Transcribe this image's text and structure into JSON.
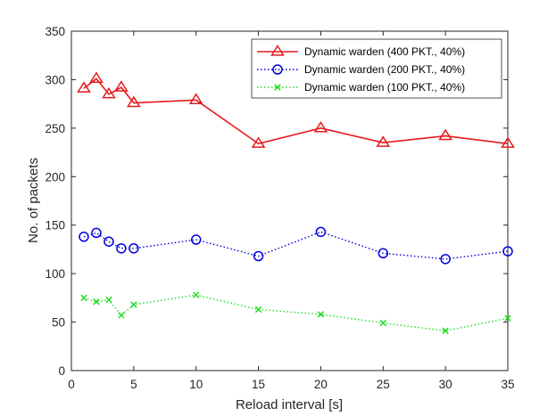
{
  "chart_data": {
    "type": "line",
    "title": "",
    "xlabel": "Reload interval [s]",
    "ylabel": "No. of packets",
    "xlim": [
      0,
      35
    ],
    "ylim": [
      0,
      350
    ],
    "xticks": [
      0,
      5,
      10,
      15,
      20,
      25,
      30,
      35
    ],
    "yticks": [
      0,
      50,
      100,
      150,
      200,
      250,
      300,
      350
    ],
    "x": [
      1,
      2,
      3,
      4,
      5,
      10,
      15,
      20,
      25,
      30,
      35
    ],
    "legend_position": "top-right",
    "grid": false,
    "series": [
      {
        "name": "Dynamic warden (400 PKT., 40%)",
        "color": "#e41a1c",
        "line_style": "solid",
        "marker": "triangle",
        "values": [
          291,
          301,
          285,
          292,
          276,
          279,
          234,
          250,
          235,
          242,
          234
        ]
      },
      {
        "name": "Dynamic warden (200 PKT., 40%)",
        "color": "#0000dd",
        "line_style": "dotted",
        "marker": "circle",
        "values": [
          138,
          142,
          133,
          126,
          126,
          135,
          118,
          143,
          121,
          115,
          123
        ]
      },
      {
        "name": "Dynamic warden (100 PKT., 40%)",
        "color": "#22dd22",
        "line_style": "dotted",
        "marker": "x",
        "values": [
          75,
          71,
          73,
          57,
          68,
          78,
          63,
          58,
          49,
          41,
          54
        ]
      }
    ]
  }
}
